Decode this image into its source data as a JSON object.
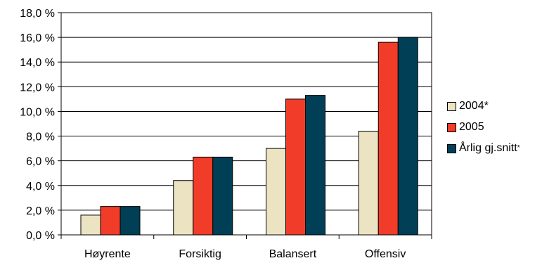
{
  "chart_data": {
    "type": "bar",
    "categories": [
      "Høyrente",
      "Forsiktig",
      "Balansert",
      "Offensiv"
    ],
    "series": [
      {
        "name": "2004*",
        "color": "#ece3c3",
        "values": [
          1.6,
          4.4,
          7.0,
          8.4
        ]
      },
      {
        "name": "2005",
        "color": "#f03c28",
        "values": [
          2.3,
          6.3,
          11.0,
          15.6
        ]
      },
      {
        "name": "Årlig gj.snitt",
        "name_suffix": "*",
        "color": "#003f55",
        "values": [
          2.3,
          6.3,
          11.3,
          16.0
        ]
      }
    ],
    "ylim": [
      0,
      18
    ],
    "yticks": [
      "0,0 %",
      "2,0 %",
      "4,0 %",
      "6,0 %",
      "8,0 %",
      "10,0 %",
      "12,0 %",
      "14,0 %",
      "16,0 %",
      "18,0 %"
    ],
    "ytick_values": [
      0,
      2,
      4,
      6,
      8,
      10,
      12,
      14,
      16,
      18
    ],
    "grid": true,
    "legend_position": "right"
  }
}
